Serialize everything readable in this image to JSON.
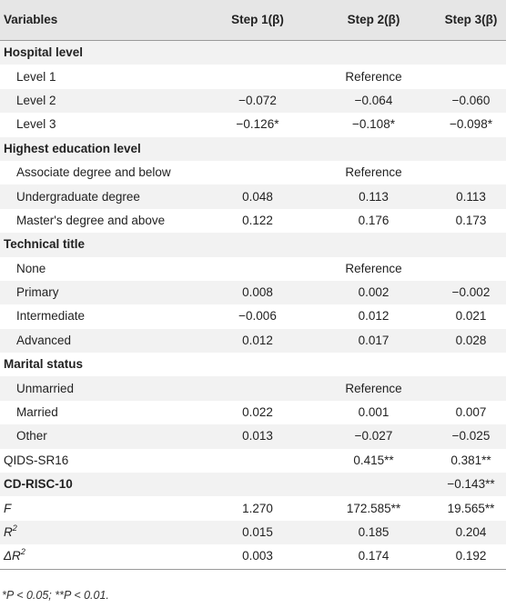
{
  "table": {
    "headers": [
      "Variables",
      "Step 1(β)",
      "Step 2(β)",
      "Step 3(β)"
    ],
    "rows": [
      {
        "type": "header",
        "label": "Hospital level",
        "values": [
          "",
          "",
          ""
        ]
      },
      {
        "type": "sub",
        "label": "Level 1",
        "values": [
          "",
          "Reference",
          ""
        ]
      },
      {
        "type": "sub",
        "label": "Level 2",
        "values": [
          "−0.072",
          "−0.064",
          "−0.060"
        ]
      },
      {
        "type": "sub",
        "label": "Level 3",
        "values": [
          "−0.126*",
          "−0.108*",
          "−0.098*"
        ]
      },
      {
        "type": "header",
        "label": "Highest education level",
        "values": [
          "",
          "",
          ""
        ]
      },
      {
        "type": "sub",
        "label": "Associate degree and below",
        "values": [
          "",
          "Reference",
          ""
        ]
      },
      {
        "type": "sub",
        "label": "Undergraduate degree",
        "values": [
          "0.048",
          "0.113",
          "0.113"
        ]
      },
      {
        "type": "sub",
        "label": "Master's degree and above",
        "values": [
          "0.122",
          "0.176",
          "0.173"
        ]
      },
      {
        "type": "header",
        "label": "Technical title",
        "values": [
          "",
          "",
          ""
        ]
      },
      {
        "type": "sub",
        "label": "None",
        "values": [
          "",
          "Reference",
          ""
        ]
      },
      {
        "type": "sub",
        "label": "Primary",
        "values": [
          "0.008",
          "0.002",
          "−0.002"
        ]
      },
      {
        "type": "sub",
        "label": "Intermediate",
        "values": [
          "−0.006",
          "0.012",
          "0.021"
        ]
      },
      {
        "type": "sub",
        "label": "Advanced",
        "values": [
          "0.012",
          "0.017",
          "0.028"
        ]
      },
      {
        "type": "header",
        "label": "Marital status",
        "values": [
          "",
          "",
          ""
        ]
      },
      {
        "type": "sub",
        "label": "Unmarried",
        "values": [
          "",
          "Reference",
          ""
        ]
      },
      {
        "type": "sub",
        "label": "Married",
        "values": [
          "0.022",
          "0.001",
          "0.007"
        ]
      },
      {
        "type": "sub",
        "label": "Other",
        "values": [
          "0.013",
          "−0.027",
          "−0.025"
        ]
      },
      {
        "type": "plain",
        "label": "QIDS-SR16",
        "values": [
          "",
          "0.415**",
          "0.381**"
        ]
      },
      {
        "type": "header",
        "label": "CD-RISC-10",
        "values": [
          "",
          "",
          "−0.143**"
        ]
      },
      {
        "type": "italic",
        "label": "F",
        "values": [
          "1.270",
          "172.585**",
          "19.565**"
        ]
      },
      {
        "type": "stat",
        "label": "R",
        "label_sup": "2",
        "values": [
          "0.015",
          "0.185",
          "0.204"
        ]
      },
      {
        "type": "stat",
        "label": "ΔR",
        "label_sup": "2",
        "values": [
          "0.003",
          "0.174",
          "0.192"
        ]
      }
    ]
  },
  "footnote": "*P < 0.05; **P < 0.01."
}
